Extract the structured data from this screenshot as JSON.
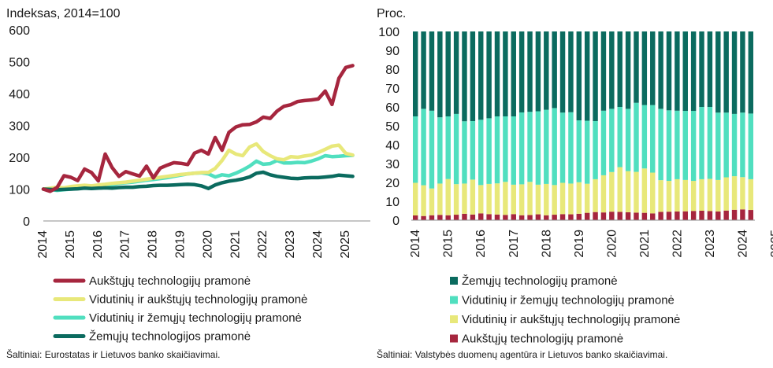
{
  "colors": {
    "high_tech": "#a6263e",
    "medium_high_tech": "#e8e87a",
    "medium_low_tech": "#50dfbf",
    "low_tech": "#0b6b5f",
    "axis": "#8c8c8c",
    "text": "#1a1a1a"
  },
  "chart_data": [
    {
      "type": "line",
      "unit_label": "Indeksas, 2014=100",
      "ylim": [
        0,
        600
      ],
      "y_ticks": [
        "0",
        "100",
        "200",
        "300",
        "400",
        "500",
        "600"
      ],
      "x_tick_labels": [
        "2014",
        "2015",
        "2016",
        "2017",
        "2018",
        "2019",
        "2020",
        "2021",
        "2022",
        "2023",
        "2024",
        "2025"
      ],
      "x_range": [
        2014.0,
        2025.75
      ],
      "grid": false,
      "legend": "bottom",
      "source": "Šaltiniai: Eurostatas ir Lietuvos banko skaičiavimai.",
      "series": [
        {
          "name": "Aukštųjų technologijų pramonė",
          "color_key": "high_tech",
          "points": [
            [
              2014.0,
              100
            ],
            [
              2014.25,
              93
            ],
            [
              2014.5,
              105
            ],
            [
              2014.75,
              142
            ],
            [
              2015.0,
              137
            ],
            [
              2015.25,
              127
            ],
            [
              2015.5,
              163
            ],
            [
              2015.75,
              152
            ],
            [
              2016.0,
              126
            ],
            [
              2016.25,
              210
            ],
            [
              2016.5,
              168
            ],
            [
              2016.75,
              140
            ],
            [
              2017.0,
              155
            ],
            [
              2017.25,
              148
            ],
            [
              2017.5,
              141
            ],
            [
              2017.75,
              172
            ],
            [
              2018.0,
              135
            ],
            [
              2018.25,
              166
            ],
            [
              2018.5,
              175
            ],
            [
              2018.75,
              183
            ],
            [
              2019.0,
              181
            ],
            [
              2019.25,
              177
            ],
            [
              2019.5,
              213
            ],
            [
              2019.75,
              222
            ],
            [
              2020.0,
              210
            ],
            [
              2020.25,
              262
            ],
            [
              2020.5,
              222
            ],
            [
              2020.75,
              278
            ],
            [
              2021.0,
              295
            ],
            [
              2021.25,
              302
            ],
            [
              2021.5,
              303
            ],
            [
              2021.75,
              311
            ],
            [
              2022.0,
              326
            ],
            [
              2022.25,
              322
            ],
            [
              2022.5,
              345
            ],
            [
              2022.75,
              360
            ],
            [
              2023.0,
              365
            ],
            [
              2023.25,
              375
            ],
            [
              2023.5,
              378
            ],
            [
              2023.75,
              380
            ],
            [
              2024.0,
              383
            ],
            [
              2024.25,
              408
            ],
            [
              2024.5,
              366
            ],
            [
              2024.75,
              448
            ],
            [
              2025.0,
              482
            ],
            [
              2025.25,
              488
            ]
          ]
        },
        {
          "name": "Vidutinių ir aukštųjų technologijų pramonė",
          "color_key": "medium_high_tech",
          "points": [
            [
              2014.0,
              100
            ],
            [
              2014.25,
              103
            ],
            [
              2014.5,
              106
            ],
            [
              2014.75,
              104
            ],
            [
              2015.0,
              108
            ],
            [
              2015.25,
              110
            ],
            [
              2015.5,
              112
            ],
            [
              2015.75,
              110
            ],
            [
              2016.0,
              113
            ],
            [
              2016.25,
              115
            ],
            [
              2016.5,
              118
            ],
            [
              2016.75,
              120
            ],
            [
              2017.0,
              122
            ],
            [
              2017.25,
              125
            ],
            [
              2017.5,
              128
            ],
            [
              2017.75,
              131
            ],
            [
              2018.0,
              134
            ],
            [
              2018.25,
              137
            ],
            [
              2018.5,
              140
            ],
            [
              2018.75,
              143
            ],
            [
              2019.0,
              146
            ],
            [
              2019.25,
              148
            ],
            [
              2019.5,
              150
            ],
            [
              2019.75,
              152
            ],
            [
              2020.0,
              152
            ],
            [
              2020.25,
              165
            ],
            [
              2020.5,
              190
            ],
            [
              2020.75,
              222
            ],
            [
              2021.0,
              210
            ],
            [
              2021.25,
              205
            ],
            [
              2021.5,
              232
            ],
            [
              2021.75,
              242
            ],
            [
              2022.0,
              218
            ],
            [
              2022.25,
              205
            ],
            [
              2022.5,
              195
            ],
            [
              2022.75,
              192
            ],
            [
              2023.0,
              202
            ],
            [
              2023.25,
              200
            ],
            [
              2023.5,
              204
            ],
            [
              2023.75,
              207
            ],
            [
              2024.0,
              215
            ],
            [
              2024.25,
              225
            ],
            [
              2024.5,
              235
            ],
            [
              2024.75,
              238
            ],
            [
              2025.0,
              212
            ],
            [
              2025.25,
              207
            ]
          ]
        },
        {
          "name": "Vidutinių ir žemųjų technologijų pramonė",
          "color_key": "medium_low_tech",
          "points": [
            [
              2014.0,
              100
            ],
            [
              2014.25,
              99
            ],
            [
              2014.5,
              96
            ],
            [
              2014.75,
              98
            ],
            [
              2015.0,
              100
            ],
            [
              2015.25,
              102
            ],
            [
              2015.5,
              105
            ],
            [
              2015.75,
              107
            ],
            [
              2016.0,
              108
            ],
            [
              2016.25,
              110
            ],
            [
              2016.5,
              114
            ],
            [
              2016.75,
              118
            ],
            [
              2017.0,
              120
            ],
            [
              2017.25,
              122
            ],
            [
              2017.5,
              125
            ],
            [
              2017.75,
              128
            ],
            [
              2018.0,
              130
            ],
            [
              2018.25,
              133
            ],
            [
              2018.5,
              136
            ],
            [
              2018.75,
              140
            ],
            [
              2019.0,
              144
            ],
            [
              2019.25,
              148
            ],
            [
              2019.5,
              150
            ],
            [
              2019.75,
              151
            ],
            [
              2020.0,
              148
            ],
            [
              2020.25,
              138
            ],
            [
              2020.5,
              145
            ],
            [
              2020.75,
              142
            ],
            [
              2021.0,
              150
            ],
            [
              2021.25,
              160
            ],
            [
              2021.5,
              172
            ],
            [
              2021.75,
              188
            ],
            [
              2022.0,
              178
            ],
            [
              2022.25,
              180
            ],
            [
              2022.5,
              190
            ],
            [
              2022.75,
              182
            ],
            [
              2023.0,
              182
            ],
            [
              2023.25,
              184
            ],
            [
              2023.5,
              183
            ],
            [
              2023.75,
              188
            ],
            [
              2024.0,
              195
            ],
            [
              2024.25,
              205
            ],
            [
              2024.5,
              202
            ],
            [
              2024.75,
              203
            ],
            [
              2025.0,
              205
            ],
            [
              2025.25,
              206
            ]
          ]
        },
        {
          "name": "Žemųjų technologijos pramonė",
          "color_key": "low_tech",
          "points": [
            [
              2014.0,
              100
            ],
            [
              2014.25,
              99
            ],
            [
              2014.5,
              98
            ],
            [
              2014.75,
              99
            ],
            [
              2015.0,
              100
            ],
            [
              2015.25,
              101
            ],
            [
              2015.5,
              103
            ],
            [
              2015.75,
              102
            ],
            [
              2016.0,
              103
            ],
            [
              2016.25,
              104
            ],
            [
              2016.5,
              103
            ],
            [
              2016.75,
              105
            ],
            [
              2017.0,
              106
            ],
            [
              2017.25,
              106
            ],
            [
              2017.5,
              108
            ],
            [
              2017.75,
              109
            ],
            [
              2018.0,
              111
            ],
            [
              2018.25,
              112
            ],
            [
              2018.5,
              112
            ],
            [
              2018.75,
              113
            ],
            [
              2019.0,
              114
            ],
            [
              2019.25,
              115
            ],
            [
              2019.5,
              114
            ],
            [
              2019.75,
              110
            ],
            [
              2020.0,
              102
            ],
            [
              2020.25,
              113
            ],
            [
              2020.5,
              120
            ],
            [
              2020.75,
              125
            ],
            [
              2021.0,
              128
            ],
            [
              2021.25,
              132
            ],
            [
              2021.5,
              138
            ],
            [
              2021.75,
              150
            ],
            [
              2022.0,
              153
            ],
            [
              2022.25,
              145
            ],
            [
              2022.5,
              140
            ],
            [
              2022.75,
              137
            ],
            [
              2023.0,
              134
            ],
            [
              2023.25,
              133
            ],
            [
              2023.5,
              135
            ],
            [
              2023.75,
              136
            ],
            [
              2024.0,
              136
            ],
            [
              2024.25,
              138
            ],
            [
              2024.5,
              140
            ],
            [
              2024.75,
              144
            ],
            [
              2025.0,
              142
            ],
            [
              2025.25,
              140
            ]
          ]
        }
      ]
    },
    {
      "type": "bar",
      "stacked": true,
      "unit_label": "Proc.",
      "ylim": [
        0,
        100
      ],
      "y_ticks": [
        "0",
        "10",
        "20",
        "30",
        "40",
        "50",
        "60",
        "70",
        "80",
        "90",
        "100"
      ],
      "x_tick_labels": [
        "2014",
        "2015",
        "2016",
        "2017",
        "2018",
        "2019",
        "2020",
        "2021",
        "2022",
        "2023",
        "2024",
        "2025"
      ],
      "bars_per_year": 4,
      "grid": false,
      "legend": "bottom",
      "source": "Šaltiniai: Valstybės duomenų agentūra ir Lietuvos banko skaičiavimai.",
      "legend_order": [
        3,
        2,
        1,
        0
      ],
      "series": [
        {
          "name": "Aukštųjų technologijų pramonė",
          "color_key": "high_tech",
          "values": [
            2.5,
            2.2,
            2.6,
            2.8,
            2.6,
            2.9,
            3.4,
            3.0,
            3.6,
            3.2,
            3.0,
            2.8,
            3.2,
            2.6,
            2.7,
            3.1,
            2.6,
            2.9,
            3.2,
            3.1,
            3.4,
            3.9,
            4.3,
            4.1,
            4.5,
            4.4,
            4.2,
            4.0,
            3.9,
            3.6,
            4.4,
            4.5,
            4.6,
            4.7,
            4.9,
            5.0,
            4.8,
            4.6,
            5.1,
            5.5,
            5.7,
            5.4
          ]
        },
        {
          "name": "Vidutinių ir aukštųjų technologijų pramonė",
          "color_key": "medium_high_tech",
          "values": [
            17.3,
            16.3,
            14.2,
            16.6,
            19.2,
            16.2,
            16.0,
            18.5,
            15.0,
            16.0,
            16.5,
            17.5,
            15.6,
            16.4,
            17.6,
            15.7,
            16.6,
            15.7,
            16.6,
            16.3,
            16.7,
            15.4,
            17.4,
            19.7,
            21.0,
            23.7,
            21.8,
            21.6,
            23.5,
            21.6,
            16.8,
            16.3,
            17.1,
            16.6,
            15.9,
            16.7,
            17.1,
            16.7,
            17.6,
            17.8,
            17.1,
            16.3
          ]
        },
        {
          "name": "Vidutinių ir žemųjų technologijų pramonė",
          "color_key": "medium_low_tech",
          "values": [
            35.2,
            40.5,
            41.2,
            35.1,
            33.2,
            37.2,
            33.0,
            31.0,
            34.6,
            34.8,
            35.5,
            34.7,
            36.2,
            38.1,
            37.1,
            38.9,
            39.3,
            40.8,
            37.2,
            37.8,
            32.8,
            33.4,
            30.8,
            34.2,
            33.5,
            31.9,
            33.0,
            36.6,
            33.6,
            35.8,
            37.8,
            37.4,
            36.3,
            36.6,
            37.1,
            38.3,
            38.1,
            35.7,
            34.3,
            33.0,
            34.2,
            34.8
          ]
        },
        {
          "name": "Žemųjų technologijų pramonė",
          "color_key": "low_tech",
          "values": [
            45.0,
            41.0,
            42.0,
            45.5,
            45.0,
            43.7,
            47.6,
            47.5,
            46.8,
            46.0,
            45.0,
            45.0,
            45.0,
            42.9,
            42.6,
            42.3,
            41.5,
            40.6,
            43.0,
            42.8,
            47.1,
            47.3,
            47.5,
            42.0,
            41.0,
            40.0,
            41.0,
            37.8,
            39.0,
            39.0,
            41.0,
            41.8,
            42.0,
            42.1,
            42.1,
            40.0,
            40.0,
            43.0,
            43.0,
            43.7,
            43.0,
            43.5
          ]
        }
      ]
    }
  ]
}
